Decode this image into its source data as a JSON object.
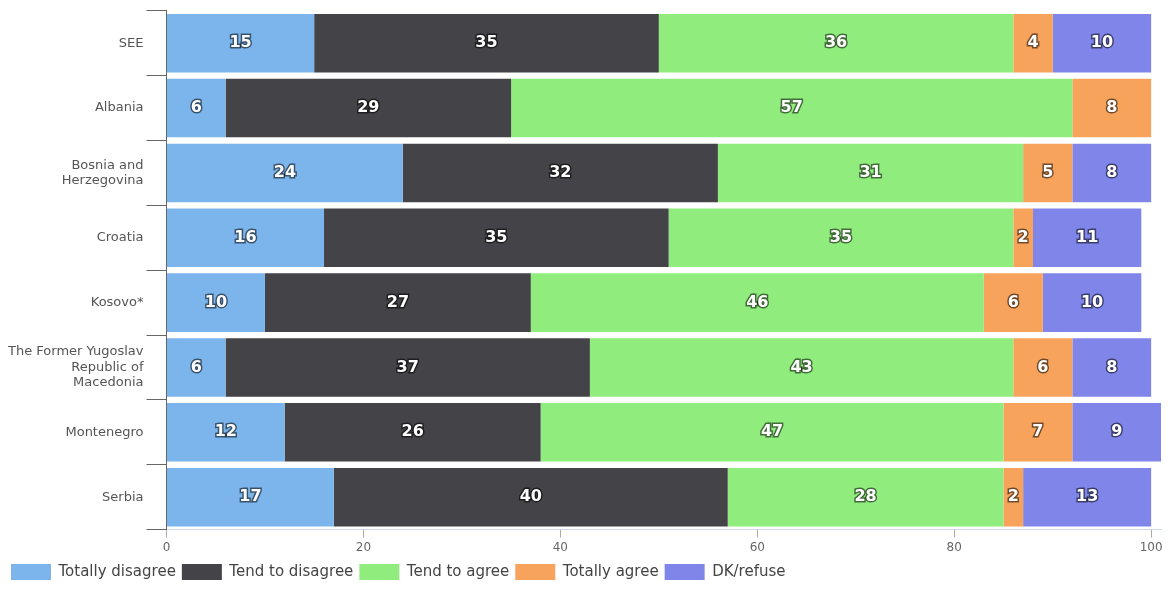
{
  "chart_data": {
    "type": "bar",
    "orientation": "horizontal",
    "stacked": true,
    "data_labels": true,
    "grid": false,
    "legend": "bottom",
    "categories": [
      "SEE",
      "Albania",
      "Bosnia and Herzegovina",
      "Croatia",
      "Kosovo*",
      "The Former Yugoslav Republic of Macedonia",
      "Montenegro",
      "Serbia"
    ],
    "xlim": [
      0,
      101
    ],
    "xticks": [
      0,
      20,
      40,
      60,
      80,
      100
    ],
    "series": [
      {
        "name": "Totally disagree",
        "color": "#7cb5ec",
        "values": [
          15,
          6,
          24,
          16,
          10,
          6,
          12,
          17
        ]
      },
      {
        "name": "Tend to disagree",
        "color": "#434348",
        "values": [
          35,
          29,
          32,
          35,
          27,
          37,
          26,
          40
        ]
      },
      {
        "name": "Tend to agree",
        "color": "#90ed7d",
        "values": [
          36,
          57,
          31,
          35,
          46,
          43,
          47,
          28
        ]
      },
      {
        "name": "Totally agree",
        "color": "#f7a35c",
        "values": [
          4,
          8,
          5,
          2,
          6,
          6,
          7,
          2
        ]
      },
      {
        "name": "DK/refuse",
        "color": "#8085e9",
        "values": [
          10,
          null,
          8,
          11,
          10,
          8,
          9,
          13
        ]
      }
    ]
  }
}
